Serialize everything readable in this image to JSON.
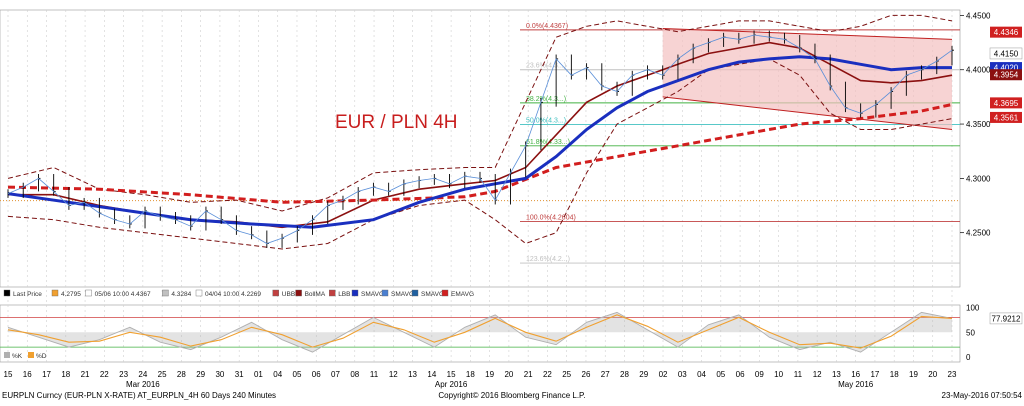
{
  "chart_title": "EUR / PLN 4H",
  "footer": {
    "left": "EURPLN Curncy (EUR-PLN X-RATE) AT_EURPLN_4H 60 Days 240 Minutes",
    "center": "Copyright© 2016 Bloomberg Finance L.P.",
    "right": "23-May-2016 07:50:54"
  },
  "legend": [
    {
      "label": "Last Price",
      "color": "#000000"
    },
    {
      "label": "4.2795",
      "color": "#f0a030"
    },
    {
      "label": "05/06 10:00 4.4367",
      "color": "#ffffff"
    },
    {
      "label": "4.3284",
      "color": "#c0c0c0"
    },
    {
      "label": "04/04 10:00 4.2269",
      "color": "#ffffff"
    },
    {
      "label": "UBB",
      "color": "#c04040"
    },
    {
      "label": "BollMA",
      "color": "#8b1010"
    },
    {
      "label": "LBB",
      "color": "#c04040"
    },
    {
      "label": "SMAVG",
      "color": "#1a2fbf"
    },
    {
      "label": "SMAVG",
      "color": "#4a7fd0"
    },
    {
      "label": "SMAVG",
      "color": "#2060a0"
    },
    {
      "label": "EMAVG",
      "color": "#d02020"
    }
  ],
  "osc_legend": [
    {
      "label": "%K",
      "color": "#b0b0b0"
    },
    {
      "label": "%D",
      "color": "#f0a030"
    }
  ],
  "colors": {
    "price": "#000000",
    "bollinger_band": "#7a1010",
    "bollinger_ma": "#8b1010",
    "sma_blue": "#1a2fbf",
    "sma_light": "#5a8fd8",
    "ema_red": "#d21e1e",
    "channel_fill": "#f4c0c0",
    "channel_line": "#c02020",
    "fib_red": "#c04040",
    "fib_green": "#40b040",
    "fib_cyan": "#40c0c0",
    "stoch_k": "#b0b0b0",
    "stoch_d": "#f0a030"
  },
  "chart_data": [
    {
      "type": "line",
      "panel": "price",
      "y_axis_labels": [
        "4.4500",
        "4.4000",
        "4.3500",
        "4.3000",
        "4.2500"
      ],
      "y_values": [
        4.45,
        4.4,
        4.35,
        4.3,
        4.25
      ],
      "ylim": [
        4.2,
        4.455
      ],
      "right_labels": [
        {
          "value": 4.4346,
          "text": "4.4346",
          "bg": "#d02020",
          "fg": "#ffffff"
        },
        {
          "value": 4.415,
          "text": "4.4150",
          "bg": "#ffffff",
          "fg": "#000000"
        },
        {
          "value": 4.402,
          "text": "4.4020",
          "bg": "#1a2fbf",
          "fg": "#ffffff"
        },
        {
          "value": 4.3954,
          "text": "4.3954",
          "bg": "#8b1010",
          "fg": "#ffffff"
        },
        {
          "value": 4.3695,
          "text": "4.3695",
          "bg": "#d02020",
          "fg": "#ffffff"
        },
        {
          "value": 4.3561,
          "text": "4.3561",
          "bg": "#d02020",
          "fg": "#ffffff"
        }
      ],
      "fib_levels": [
        {
          "text": "0.0%(4.4367)",
          "value": 4.4367,
          "color": "#c04040"
        },
        {
          "text": "23.6%(4.3...)",
          "value": 4.4,
          "color": "#c0c0c0"
        },
        {
          "text": "38.2%(4.3...)",
          "value": 4.3695,
          "color": "#40b040"
        },
        {
          "text": "50.0%(4.3...)",
          "value": 4.3495,
          "color": "#40c0c0"
        },
        {
          "text": "61.8%(4.33...)",
          "value": 4.33,
          "color": "#40b040"
        },
        {
          "text": "100.0%(4.2604)",
          "value": 4.2604,
          "color": "#c04040"
        },
        {
          "text": "123.6%(4.2...)",
          "value": 4.222,
          "color": "#c0c0c0"
        }
      ],
      "dotted_level": 4.2795,
      "x_ticks": [
        "15",
        "16",
        "17",
        "18",
        "21",
        "22",
        "23",
        "24",
        "25",
        "28",
        "29",
        "30",
        "31",
        "01",
        "04",
        "05",
        "06",
        "07",
        "08",
        "11",
        "12",
        "13",
        "14",
        "15",
        "18",
        "19",
        "20",
        "21",
        "22",
        "25",
        "26",
        "27",
        "28",
        "29",
        "02",
        "03",
        "04",
        "05",
        "06",
        "09",
        "10",
        "11",
        "12",
        "13",
        "16",
        "17",
        "18",
        "19",
        "20",
        "23"
      ],
      "month_labels": [
        {
          "text": "Mar 2016",
          "tick_index": 7
        },
        {
          "text": "Apr 2016",
          "tick_index": 23
        },
        {
          "text": "May 2016",
          "tick_index": 44
        }
      ],
      "price_series": [
        [
          0,
          4.286
        ],
        [
          1,
          4.292
        ],
        [
          2,
          4.3
        ],
        [
          3,
          4.288
        ],
        [
          4,
          4.275
        ],
        [
          5,
          4.278
        ],
        [
          6,
          4.268
        ],
        [
          7,
          4.262
        ],
        [
          8,
          4.258
        ],
        [
          9,
          4.27
        ],
        [
          10,
          4.265
        ],
        [
          11,
          4.262
        ],
        [
          12,
          4.256
        ],
        [
          13,
          4.27
        ],
        [
          14,
          4.262
        ],
        [
          15,
          4.252
        ],
        [
          16,
          4.248
        ],
        [
          17,
          4.24
        ],
        [
          18,
          4.245
        ],
        [
          19,
          4.252
        ],
        [
          20,
          4.262
        ],
        [
          21,
          4.275
        ],
        [
          22,
          4.28
        ],
        [
          23,
          4.288
        ],
        [
          24,
          4.292
        ],
        [
          25,
          4.288
        ],
        [
          26,
          4.295
        ],
        [
          27,
          4.298
        ],
        [
          28,
          4.3
        ],
        [
          29,
          4.295
        ],
        [
          30,
          4.302
        ],
        [
          31,
          4.3
        ],
        [
          32,
          4.28
        ],
        [
          33,
          4.305
        ],
        [
          34,
          4.33
        ],
        [
          35,
          4.37
        ],
        [
          36,
          4.41
        ],
        [
          37,
          4.395
        ],
        [
          38,
          4.402
        ],
        [
          39,
          4.385
        ],
        [
          40,
          4.38
        ],
        [
          41,
          4.395
        ],
        [
          42,
          4.4
        ],
        [
          43,
          4.395
        ],
        [
          44,
          4.41
        ],
        [
          45,
          4.42
        ],
        [
          46,
          4.425
        ],
        [
          47,
          4.43
        ],
        [
          48,
          4.428
        ],
        [
          49,
          4.432
        ],
        [
          50,
          4.43
        ],
        [
          51,
          4.428
        ],
        [
          52,
          4.42
        ],
        [
          53,
          4.41
        ],
        [
          54,
          4.385
        ],
        [
          55,
          4.365
        ],
        [
          56,
          4.36
        ],
        [
          57,
          4.368
        ],
        [
          58,
          4.38
        ],
        [
          59,
          4.395
        ],
        [
          60,
          4.4
        ],
        [
          61,
          4.408
        ],
        [
          62,
          4.418
        ]
      ],
      "upper_band": [
        [
          0,
          4.3
        ],
        [
          3,
          4.31
        ],
        [
          6,
          4.29
        ],
        [
          9,
          4.285
        ],
        [
          12,
          4.278
        ],
        [
          15,
          4.28
        ],
        [
          18,
          4.27
        ],
        [
          21,
          4.282
        ],
        [
          24,
          4.305
        ],
        [
          27,
          4.308
        ],
        [
          30,
          4.31
        ],
        [
          32,
          4.31
        ],
        [
          34,
          4.37
        ],
        [
          36,
          4.43
        ],
        [
          38,
          4.44
        ],
        [
          40,
          4.445
        ],
        [
          42,
          4.44
        ],
        [
          44,
          4.435
        ],
        [
          46,
          4.44
        ],
        [
          48,
          4.445
        ],
        [
          50,
          4.445
        ],
        [
          52,
          4.44
        ],
        [
          54,
          4.435
        ],
        [
          56,
          4.44
        ],
        [
          58,
          4.45
        ],
        [
          60,
          4.45
        ],
        [
          62,
          4.445
        ]
      ],
      "lower_band": [
        [
          0,
          4.265
        ],
        [
          3,
          4.262
        ],
        [
          6,
          4.255
        ],
        [
          9,
          4.25
        ],
        [
          12,
          4.245
        ],
        [
          15,
          4.24
        ],
        [
          18,
          4.235
        ],
        [
          21,
          4.24
        ],
        [
          24,
          4.262
        ],
        [
          27,
          4.275
        ],
        [
          30,
          4.28
        ],
        [
          32,
          4.262
        ],
        [
          34,
          4.24
        ],
        [
          36,
          4.25
        ],
        [
          38,
          4.305
        ],
        [
          40,
          4.35
        ],
        [
          42,
          4.365
        ],
        [
          44,
          4.38
        ],
        [
          46,
          4.4
        ],
        [
          48,
          4.405
        ],
        [
          50,
          4.41
        ],
        [
          52,
          4.395
        ],
        [
          54,
          4.36
        ],
        [
          56,
          4.345
        ],
        [
          58,
          4.345
        ],
        [
          60,
          4.35
        ],
        [
          62,
          4.355
        ]
      ],
      "bollinger_ma": [
        [
          0,
          4.285
        ],
        [
          3,
          4.285
        ],
        [
          6,
          4.275
        ],
        [
          9,
          4.268
        ],
        [
          12,
          4.262
        ],
        [
          15,
          4.26
        ],
        [
          18,
          4.255
        ],
        [
          21,
          4.26
        ],
        [
          24,
          4.28
        ],
        [
          27,
          4.29
        ],
        [
          30,
          4.295
        ],
        [
          32,
          4.298
        ],
        [
          34,
          4.31
        ],
        [
          36,
          4.34
        ],
        [
          38,
          4.37
        ],
        [
          40,
          4.385
        ],
        [
          42,
          4.395
        ],
        [
          44,
          4.405
        ],
        [
          46,
          4.415
        ],
        [
          48,
          4.42
        ],
        [
          50,
          4.425
        ],
        [
          52,
          4.42
        ],
        [
          54,
          4.405
        ],
        [
          56,
          4.39
        ],
        [
          58,
          4.388
        ],
        [
          60,
          4.39
        ],
        [
          62,
          4.395
        ]
      ],
      "sma_blue": [
        [
          0,
          4.286
        ],
        [
          4,
          4.278
        ],
        [
          8,
          4.27
        ],
        [
          12,
          4.262
        ],
        [
          16,
          4.258
        ],
        [
          20,
          4.255
        ],
        [
          24,
          4.262
        ],
        [
          27,
          4.278
        ],
        [
          30,
          4.29
        ],
        [
          32,
          4.295
        ],
        [
          34,
          4.3
        ],
        [
          36,
          4.32
        ],
        [
          38,
          4.345
        ],
        [
          40,
          4.365
        ],
        [
          42,
          4.38
        ],
        [
          44,
          4.39
        ],
        [
          46,
          4.4
        ],
        [
          48,
          4.407
        ],
        [
          50,
          4.41
        ],
        [
          52,
          4.412
        ],
        [
          54,
          4.41
        ],
        [
          56,
          4.405
        ],
        [
          58,
          4.4
        ],
        [
          60,
          4.402
        ],
        [
          62,
          4.402
        ]
      ],
      "ema_red": [
        [
          0,
          4.292
        ],
        [
          6,
          4.29
        ],
        [
          12,
          4.285
        ],
        [
          18,
          4.278
        ],
        [
          24,
          4.28
        ],
        [
          30,
          4.283
        ],
        [
          32,
          4.288
        ],
        [
          36,
          4.31
        ],
        [
          40,
          4.32
        ],
        [
          44,
          4.33
        ],
        [
          48,
          4.34
        ],
        [
          52,
          4.35
        ],
        [
          56,
          4.355
        ],
        [
          60,
          4.362
        ],
        [
          62,
          4.368
        ]
      ],
      "channel": {
        "top": [
          [
            43,
            4.438
          ],
          [
            62,
            4.428
          ]
        ],
        "bottom": [
          [
            43,
            4.375
          ],
          [
            62,
            4.345
          ]
        ]
      }
    },
    {
      "type": "line",
      "panel": "stochastic",
      "y_axis_labels": [
        "100",
        "50",
        "0"
      ],
      "y_values": [
        100,
        50,
        0
      ],
      "ylim": [
        -10,
        105
      ],
      "right_label": {
        "value": 77.9212,
        "text": "77.9212"
      },
      "guide_levels": [
        80,
        20
      ],
      "k_series": [
        [
          0,
          60
        ],
        [
          2,
          40
        ],
        [
          4,
          20
        ],
        [
          6,
          35
        ],
        [
          8,
          60
        ],
        [
          10,
          30
        ],
        [
          12,
          15
        ],
        [
          14,
          40
        ],
        [
          16,
          70
        ],
        [
          18,
          35
        ],
        [
          20,
          10
        ],
        [
          22,
          45
        ],
        [
          24,
          80
        ],
        [
          26,
          50
        ],
        [
          28,
          20
        ],
        [
          30,
          60
        ],
        [
          32,
          85
        ],
        [
          34,
          40
        ],
        [
          36,
          25
        ],
        [
          38,
          70
        ],
        [
          40,
          90
        ],
        [
          42,
          55
        ],
        [
          44,
          20
        ],
        [
          46,
          65
        ],
        [
          48,
          85
        ],
        [
          50,
          40
        ],
        [
          52,
          15
        ],
        [
          54,
          30
        ],
        [
          56,
          10
        ],
        [
          58,
          50
        ],
        [
          60,
          90
        ],
        [
          62,
          78
        ]
      ],
      "d_series": [
        [
          0,
          55
        ],
        [
          2,
          45
        ],
        [
          4,
          30
        ],
        [
          6,
          32
        ],
        [
          8,
          50
        ],
        [
          10,
          40
        ],
        [
          12,
          22
        ],
        [
          14,
          35
        ],
        [
          16,
          60
        ],
        [
          18,
          45
        ],
        [
          20,
          20
        ],
        [
          22,
          38
        ],
        [
          24,
          70
        ],
        [
          26,
          55
        ],
        [
          28,
          30
        ],
        [
          30,
          50
        ],
        [
          32,
          78
        ],
        [
          34,
          50
        ],
        [
          36,
          32
        ],
        [
          38,
          60
        ],
        [
          40,
          85
        ],
        [
          42,
          62
        ],
        [
          44,
          30
        ],
        [
          46,
          55
        ],
        [
          48,
          80
        ],
        [
          50,
          50
        ],
        [
          52,
          25
        ],
        [
          54,
          28
        ],
        [
          56,
          18
        ],
        [
          58,
          42
        ],
        [
          60,
          82
        ],
        [
          62,
          77.9
        ]
      ]
    }
  ]
}
